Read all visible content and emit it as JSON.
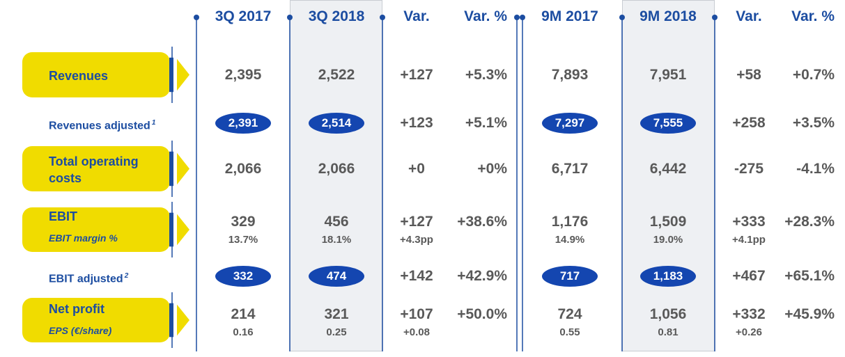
{
  "header": {
    "columns": [
      "3Q 2017",
      "3Q 2018",
      "Var.",
      "Var. %",
      "9M 2017",
      "9M 2018",
      "Var.",
      "Var. %"
    ]
  },
  "table": {
    "rows": [
      {
        "label": "Revenues",
        "style": "box",
        "cells": [
          "2,395",
          "2,522",
          "+127",
          "+5.3%",
          "7,893",
          "7,951",
          "+58",
          "+0.7%"
        ]
      },
      {
        "label": "Revenues adjusted",
        "footnote": "1",
        "style": "plain",
        "cells": [
          "2,391",
          "2,514",
          "+123",
          "+5.1%",
          "7,297",
          "7,555",
          "+258",
          "+3.5%"
        ]
      },
      {
        "label": "Total operating costs",
        "style": "box",
        "cells": [
          "2,066",
          "2,066",
          "+0",
          "+0%",
          "6,717",
          "6,442",
          "-275",
          "-4.1%"
        ]
      },
      {
        "label": "EBIT",
        "sublabel": "EBIT margin %",
        "style": "box",
        "cells": [
          "329",
          "456",
          "+127",
          "+38.6%",
          "1,176",
          "1,509",
          "+333",
          "+28.3%"
        ],
        "subcells": [
          "13.7%",
          "18.1%",
          "+4.3pp",
          null,
          "14.9%",
          "19.0%",
          "+4.1pp",
          null
        ]
      },
      {
        "label": "EBIT adjusted",
        "footnote": "2",
        "style": "plain",
        "cells": [
          "332",
          "474",
          "+142",
          "+42.9%",
          "717",
          "1,183",
          "+467",
          "+65.1%"
        ]
      },
      {
        "label": "Net profit",
        "sublabel": "EPS (€/share)",
        "style": "box",
        "cells": [
          "214",
          "321",
          "+107",
          "+50.0%",
          "724",
          "1,056",
          "+332",
          "+45.9%"
        ],
        "subcells": [
          "0.16",
          "0.25",
          "+0.08",
          null,
          "0.55",
          "0.81",
          "+0.26",
          null
        ]
      }
    ]
  }
}
